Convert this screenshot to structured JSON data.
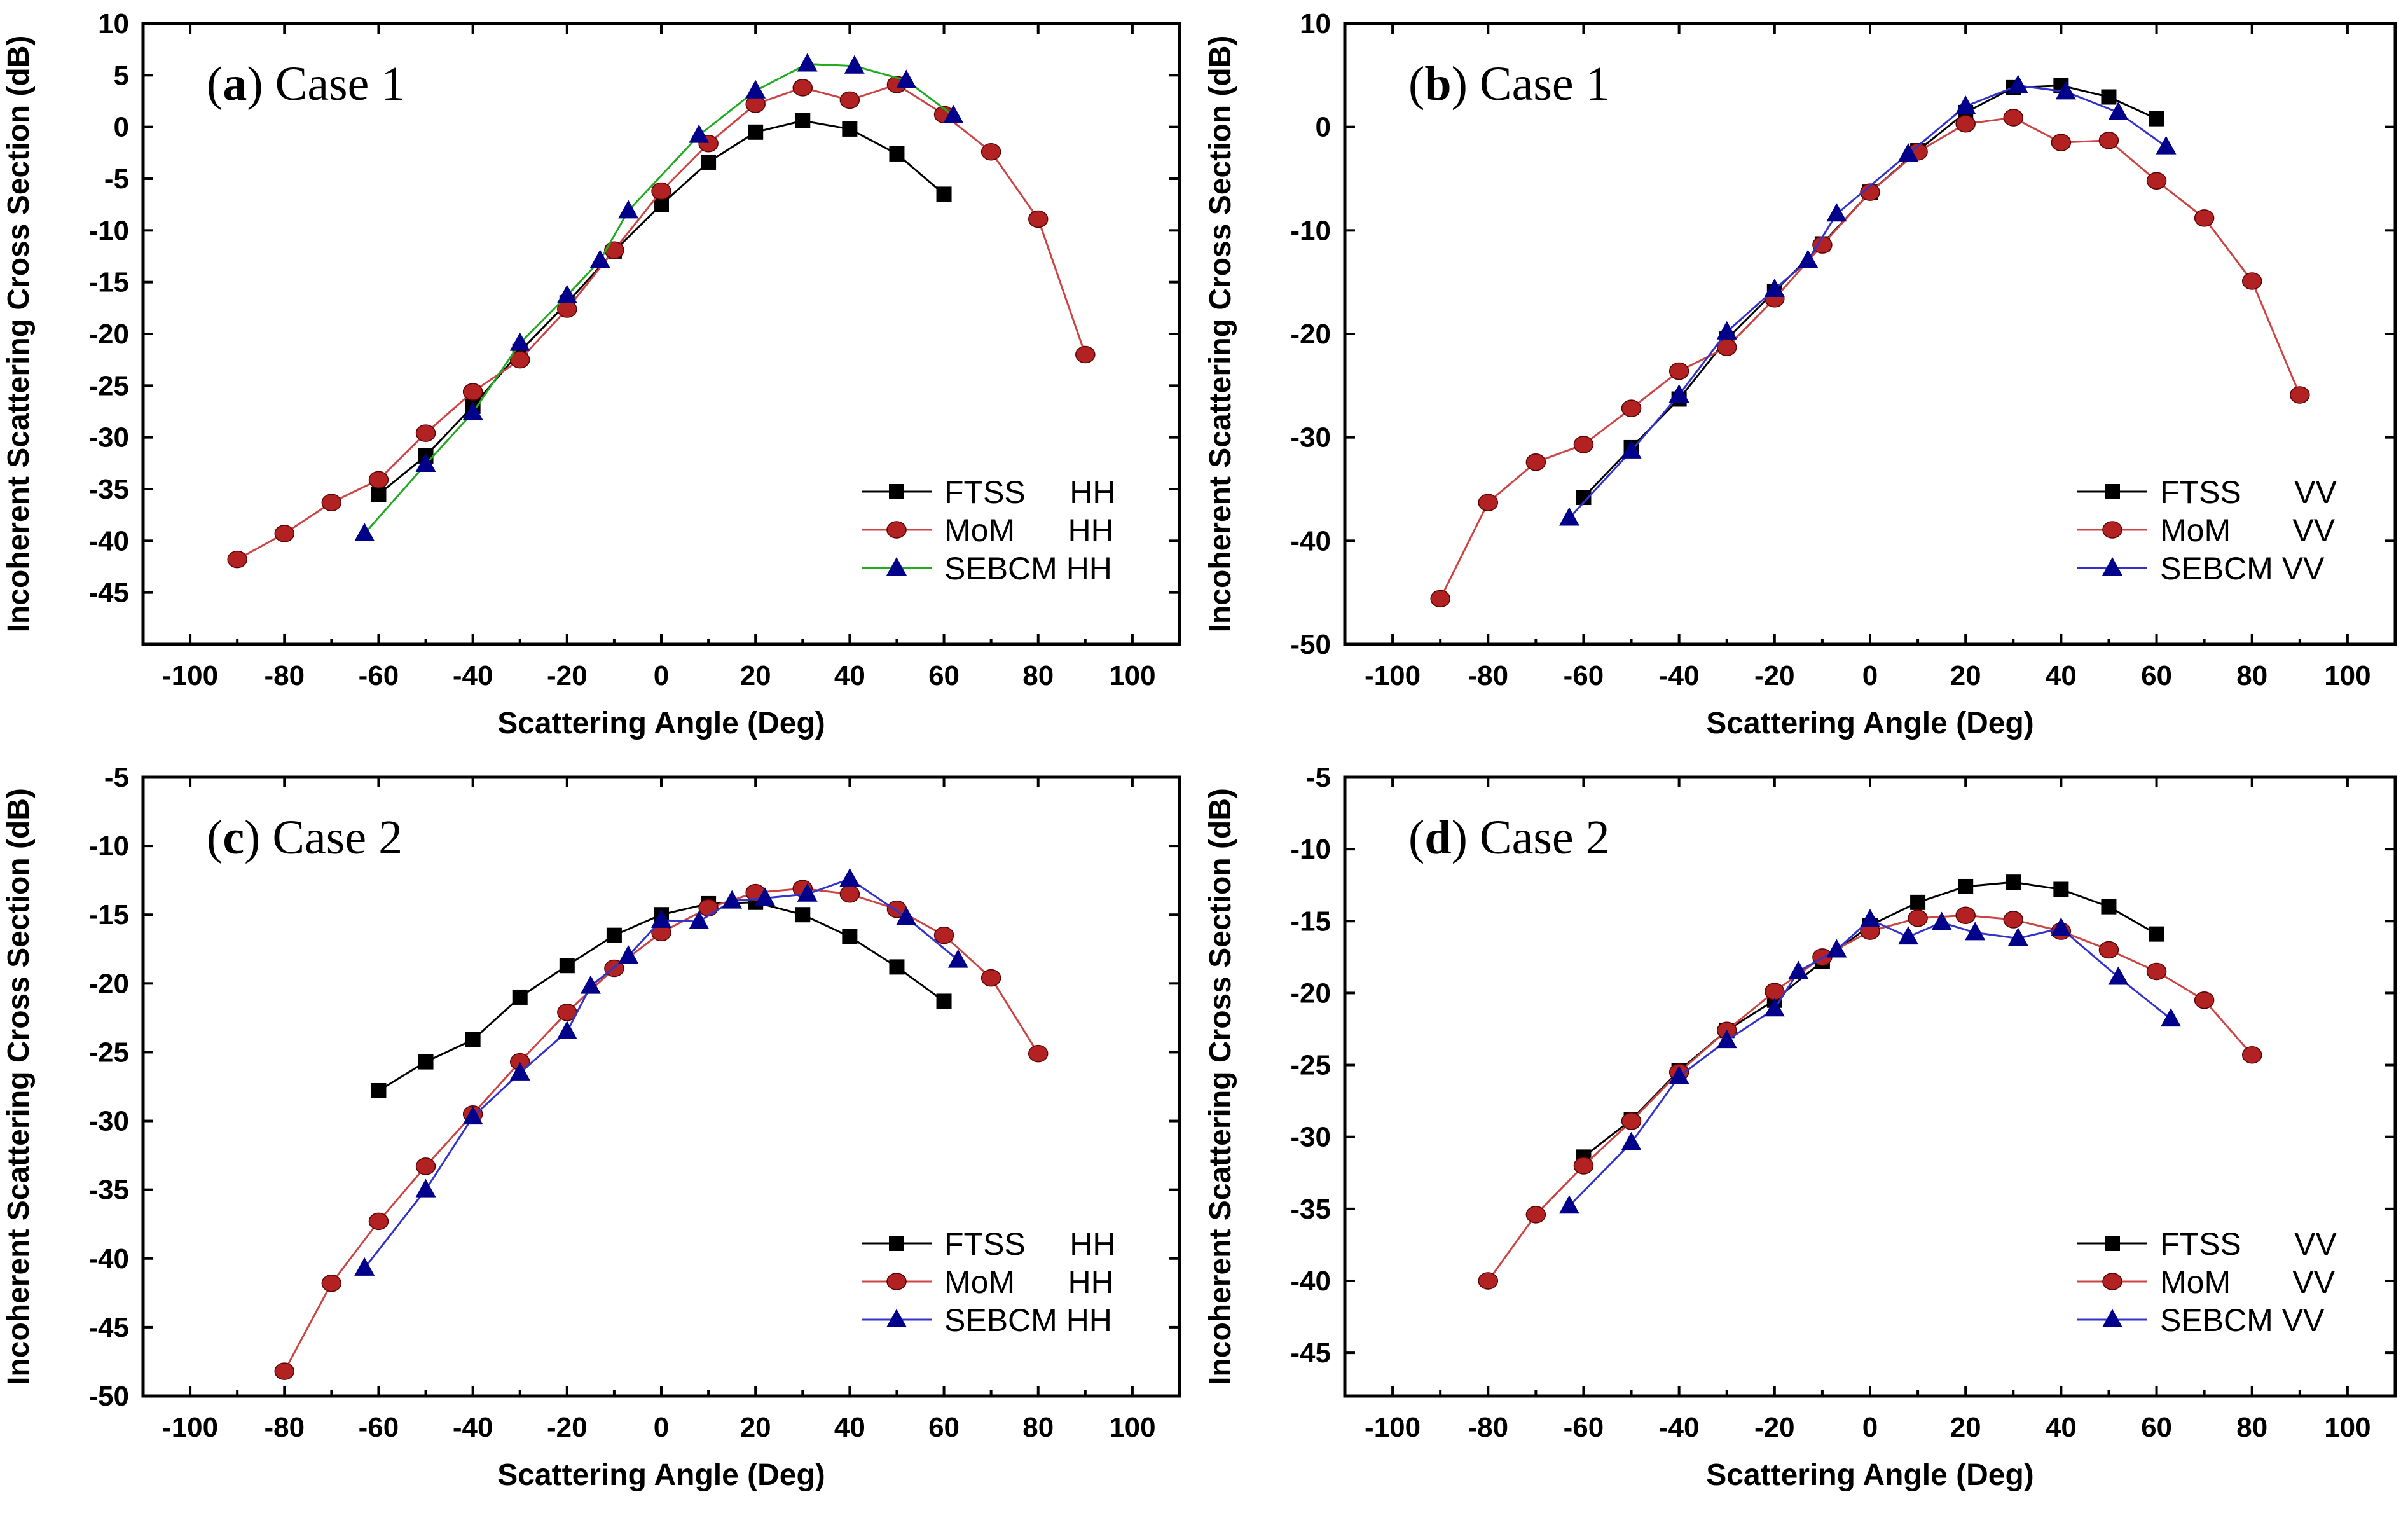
{
  "chart_data": [
    {
      "type": "line",
      "label_letter": "a",
      "label_text": " Case 1",
      "xlabel": "Scattering Angle (Deg)",
      "ylabel": "Incoherent Scattering Cross Section (dB)",
      "xlim": [
        -110,
        110
      ],
      "ylim": [
        -50,
        10
      ],
      "xticks": [
        -100,
        -80,
        -60,
        -40,
        -20,
        0,
        20,
        40,
        60,
        80,
        100
      ],
      "yticks": [
        -45,
        -40,
        -35,
        -30,
        -25,
        -20,
        -15,
        -10,
        -5,
        0,
        5,
        10
      ],
      "legend_position": "bottom-right",
      "series": [
        {
          "name": "FTSS     HH",
          "color": "#000000",
          "line_color": "#000000",
          "marker": "square",
          "x": [
            -60,
            -50,
            -40,
            -30,
            -20,
            -10,
            0,
            10,
            20,
            30,
            40,
            50,
            60
          ],
          "y": [
            -35.5,
            -31.8,
            -27.0,
            -21.7,
            -17.0,
            -12.0,
            -7.5,
            -3.4,
            -0.5,
            0.6,
            -0.2,
            -2.6,
            -6.5
          ]
        },
        {
          "name": "MoM      HH",
          "color": "#b22222",
          "line_color": "#cc4444",
          "marker": "circle",
          "x": [
            -90,
            -80,
            -70,
            -60,
            -50,
            -40,
            -30,
            -20,
            -10,
            0,
            10,
            20,
            30,
            40,
            50,
            60,
            70,
            80,
            90
          ],
          "y": [
            -41.8,
            -39.3,
            -36.3,
            -34.1,
            -29.6,
            -25.6,
            -22.5,
            -17.6,
            -11.9,
            -6.2,
            -1.6,
            2.2,
            3.8,
            2.6,
            4.1,
            1.2,
            -2.4,
            -8.9,
            -22.0
          ]
        },
        {
          "name": "SEBCM HH",
          "color": "#00008b",
          "line_color": "#22aa22",
          "marker": "triangle",
          "x": [
            -63,
            -50,
            -40,
            -30,
            -20,
            -13,
            -7,
            8,
            20,
            31,
            41,
            52,
            62
          ],
          "y": [
            -39.3,
            -32.6,
            -27.6,
            -20.9,
            -16.3,
            -12.9,
            -8.1,
            -0.8,
            3.5,
            6.1,
            5.9,
            4.5,
            1.1
          ]
        }
      ]
    },
    {
      "type": "line",
      "label_letter": "b",
      "label_text": " Case 1",
      "xlabel": "Scattering Angle (Deg)",
      "ylabel": "Incoherent Scattering Cross Section (dB)",
      "xlim": [
        -110,
        110
      ],
      "ylim": [
        -50,
        10
      ],
      "xticks": [
        -100,
        -80,
        -60,
        -40,
        -20,
        0,
        20,
        40,
        60,
        80,
        100
      ],
      "yticks": [
        -50,
        -40,
        -30,
        -20,
        -10,
        0,
        10
      ],
      "legend_position": "bottom-right",
      "series": [
        {
          "name": "FTSS      VV",
          "color": "#000000",
          "line_color": "#000000",
          "marker": "square",
          "x": [
            -60,
            -50,
            -40,
            -30,
            -20,
            -10,
            0,
            10,
            20,
            30,
            40,
            50,
            60
          ],
          "y": [
            -35.8,
            -31.0,
            -26.3,
            -20.5,
            -15.9,
            -11.3,
            -6.3,
            -2.3,
            1.4,
            3.8,
            4.0,
            2.9,
            0.8
          ]
        },
        {
          "name": "MoM       VV",
          "color": "#b22222",
          "line_color": "#cc4444",
          "marker": "circle",
          "x": [
            -90,
            -80,
            -70,
            -60,
            -50,
            -40,
            -30,
            -20,
            -10,
            0,
            10,
            20,
            30,
            40,
            50,
            60,
            70,
            80,
            90
          ],
          "y": [
            -45.6,
            -36.3,
            -32.4,
            -30.7,
            -27.2,
            -23.6,
            -21.3,
            -16.6,
            -11.4,
            -6.3,
            -2.4,
            0.3,
            0.9,
            -1.5,
            -1.3,
            -5.2,
            -8.8,
            -14.9,
            -25.9
          ]
        },
        {
          "name": "SEBCM VV",
          "color": "#00008b",
          "line_color": "#3333cc",
          "marker": "triangle",
          "x": [
            -63,
            -50,
            -40,
            -30,
            -20,
            -13,
            -7,
            8,
            20,
            31,
            41,
            52,
            62
          ],
          "y": [
            -37.8,
            -31.3,
            -25.9,
            -19.8,
            -15.7,
            -12.9,
            -8.4,
            -2.6,
            2.0,
            4.0,
            3.4,
            1.4,
            -1.9
          ]
        }
      ]
    },
    {
      "type": "line",
      "label_letter": "c",
      "label_text": " Case 2",
      "xlabel": "Scattering Angle (Deg)",
      "ylabel": "Incoherent Scattering Cross Section (dB)",
      "xlim": [
        -110,
        110
      ],
      "ylim": [
        -50,
        -5
      ],
      "xticks": [
        -100,
        -80,
        -60,
        -40,
        -20,
        0,
        20,
        40,
        60,
        80,
        100
      ],
      "yticks": [
        -50,
        -45,
        -40,
        -35,
        -30,
        -25,
        -20,
        -15,
        -10,
        -5
      ],
      "legend_position": "bottom-right",
      "series": [
        {
          "name": "FTSS     HH",
          "color": "#000000",
          "line_color": "#000000",
          "marker": "square",
          "x": [
            -60,
            -50,
            -40,
            -30,
            -20,
            -10,
            0,
            10,
            20,
            30,
            40,
            50,
            60
          ],
          "y": [
            -27.8,
            -25.7,
            -24.1,
            -21.0,
            -18.7,
            -16.5,
            -15.0,
            -14.2,
            -14.1,
            -15.0,
            -16.6,
            -18.8,
            -21.3
          ]
        },
        {
          "name": "MoM      HH",
          "color": "#b22222",
          "line_color": "#cc4444",
          "marker": "circle",
          "x": [
            -80,
            -70,
            -60,
            -50,
            -40,
            -30,
            -20,
            -10,
            0,
            10,
            20,
            30,
            40,
            50,
            60,
            70,
            80
          ],
          "y": [
            -48.2,
            -41.8,
            -37.3,
            -33.3,
            -29.5,
            -25.7,
            -22.1,
            -18.9,
            -16.3,
            -14.5,
            -13.4,
            -13.1,
            -13.5,
            -14.6,
            -16.5,
            -19.6,
            -25.1
          ]
        },
        {
          "name": "SEBCM HH",
          "color": "#00008b",
          "line_color": "#3333cc",
          "marker": "triangle",
          "x": [
            -63,
            -50,
            -40,
            -30,
            -20,
            -15,
            -7,
            0,
            8,
            15,
            22,
            31,
            40,
            52,
            63
          ],
          "y": [
            -40.7,
            -35.0,
            -29.7,
            -26.5,
            -23.5,
            -20.2,
            -18.0,
            -15.4,
            -15.5,
            -14.0,
            -13.8,
            -13.5,
            -12.4,
            -15.2,
            -18.3
          ]
        }
      ]
    },
    {
      "type": "line",
      "label_letter": "d",
      "label_text": " Case 2",
      "xlabel": "Scattering Angle (Deg)",
      "ylabel": "Incoherent Scattering Cross Section (dB)",
      "xlim": [
        -110,
        110
      ],
      "ylim": [
        -48,
        -5
      ],
      "xticks": [
        -100,
        -80,
        -60,
        -40,
        -20,
        0,
        20,
        40,
        60,
        80,
        100
      ],
      "yticks": [
        -45,
        -40,
        -35,
        -30,
        -25,
        -20,
        -15,
        -10,
        -5
      ],
      "legend_position": "bottom-right",
      "series": [
        {
          "name": "FTSS      VV",
          "color": "#000000",
          "line_color": "#000000",
          "marker": "square",
          "x": [
            -60,
            -50,
            -40,
            -30,
            -20,
            -10,
            0,
            10,
            20,
            30,
            40,
            50,
            60
          ],
          "y": [
            -31.4,
            -28.8,
            -25.4,
            -22.6,
            -20.5,
            -17.8,
            -15.3,
            -13.7,
            -12.6,
            -12.3,
            -12.8,
            -14.0,
            -15.9
          ]
        },
        {
          "name": "MoM       VV",
          "color": "#b22222",
          "line_color": "#cc4444",
          "marker": "circle",
          "x": [
            -80,
            -70,
            -60,
            -50,
            -40,
            -30,
            -20,
            -10,
            0,
            10,
            20,
            30,
            40,
            50,
            60,
            70,
            80
          ],
          "y": [
            -40.0,
            -35.4,
            -32.0,
            -28.9,
            -25.5,
            -22.6,
            -19.9,
            -17.5,
            -15.7,
            -14.8,
            -14.6,
            -14.9,
            -15.7,
            -17.0,
            -18.5,
            -20.5,
            -24.3
          ]
        },
        {
          "name": "SEBCM VV",
          "color": "#00008b",
          "line_color": "#3333cc",
          "marker": "triangle",
          "x": [
            -63,
            -50,
            -40,
            -30,
            -20,
            -15,
            -7,
            0,
            8,
            15,
            22,
            31,
            40,
            52,
            63
          ],
          "y": [
            -34.8,
            -30.4,
            -25.8,
            -23.3,
            -21.1,
            -18.5,
            -17.0,
            -14.9,
            -16.1,
            -15.1,
            -15.8,
            -16.2,
            -15.5,
            -18.9,
            -21.8
          ]
        }
      ]
    }
  ]
}
